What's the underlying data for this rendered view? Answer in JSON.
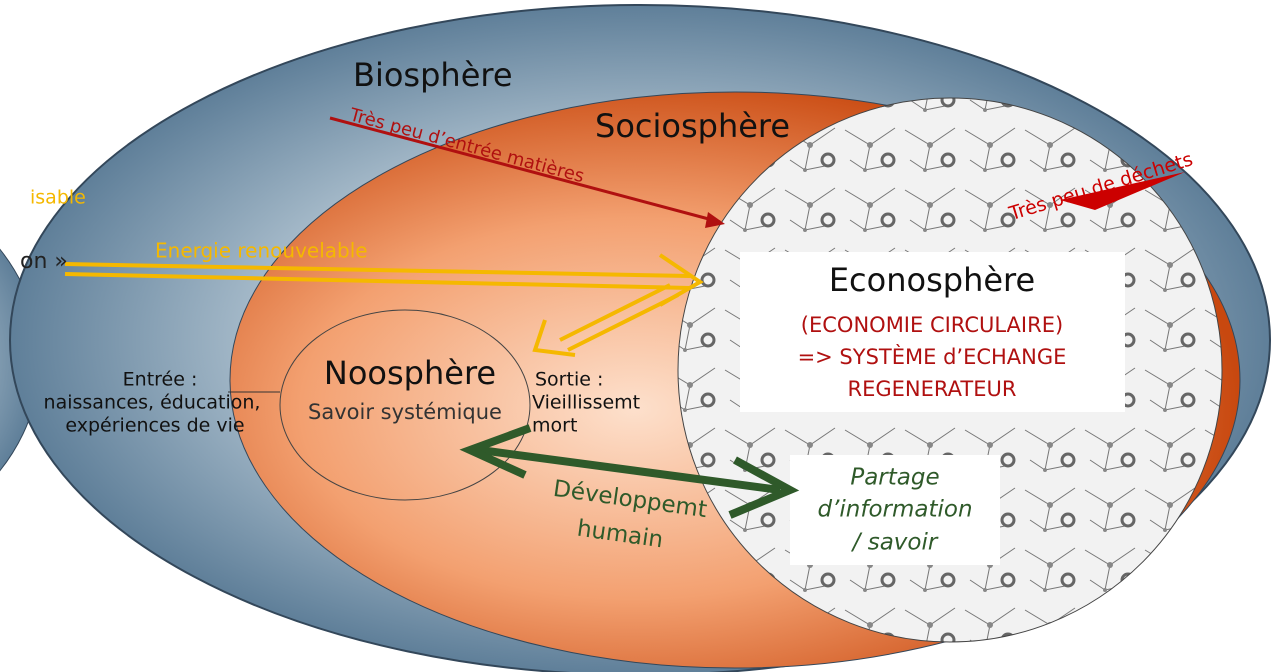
{
  "left_fragments": {
    "top": "isable",
    "bottom": "on »"
  },
  "biosphere": {
    "title": "Biosphère",
    "input": "Très peu d’entrée matières"
  },
  "sociosphere": {
    "title": "Sociosphère",
    "waste": "Très peu de déchets",
    "energy": "Energie renouvelable"
  },
  "econosphere": {
    "title": "Econosphère",
    "lines": [
      "(ECONOMIE CIRCULAIRE)",
      "=> SYSTÈME d’ECHANGE",
      "REGENERATEUR"
    ]
  },
  "noosphere": {
    "title": "Noosphère",
    "subtitle": "Savoir systémique",
    "input": [
      "Entrée :",
      "naissances, éducation,",
      "expériences de vie"
    ],
    "output": [
      "Sortie :",
      "Vieillissemt",
      "mort"
    ]
  },
  "development": [
    "Développemt",
    "humain"
  ],
  "sharing": [
    "Partage",
    "d’information",
    "/ savoir"
  ]
}
